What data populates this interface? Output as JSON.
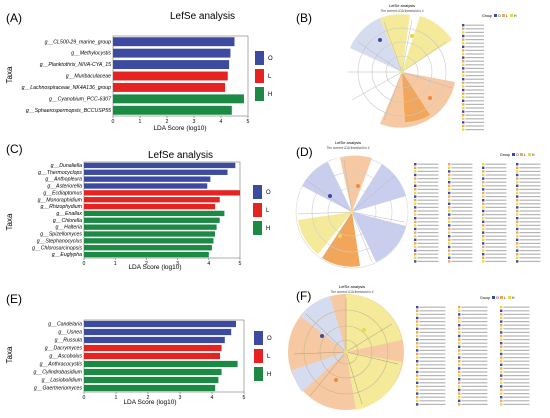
{
  "chart_data": [
    {
      "type": "bar",
      "panel_label": "(A)",
      "title": "LefSe analysis",
      "xlabel": "LDA Score (log10)",
      "ylabel": "Taxa",
      "xlim": [
        0,
        5
      ],
      "xticks": [
        0,
        1,
        2,
        3,
        4,
        5
      ],
      "legend": {
        "placement": "right",
        "entries": [
          "O",
          "L",
          "H"
        ]
      },
      "colors": {
        "O": "#3c4ba0",
        "L": "#e52421",
        "H": "#1c8a45"
      },
      "bars": [
        {
          "taxon": "g__CL500-29_marine_group",
          "group": "O",
          "value": 4.5
        },
        {
          "taxon": "g__Methylocystis",
          "group": "O",
          "value": 4.35
        },
        {
          "taxon": "g__Planktothrix_NIVA-CYA_15",
          "group": "O",
          "value": 4.3
        },
        {
          "taxon": "g__Muribaculaceae",
          "group": "L",
          "value": 4.25
        },
        {
          "taxon": "g__Lachnospiraceae_NK4A136_group",
          "group": "L",
          "value": 4.15
        },
        {
          "taxon": "g__Cyanobium_PCC-6307",
          "group": "H",
          "value": 4.85
        },
        {
          "taxon": "g__Sphaerospermopsis_BCCUSP55",
          "group": "H",
          "value": 4.4
        }
      ]
    },
    {
      "type": "bar",
      "panel_label": "(C)",
      "title": "LefSe analysis",
      "xlabel": "LDA Score (log10)",
      "ylabel": "Taxa",
      "xlim": [
        0,
        5
      ],
      "xticks": [
        0,
        1,
        2,
        3,
        4,
        5
      ],
      "legend": {
        "placement": "right",
        "entries": [
          "O",
          "L",
          "H"
        ]
      },
      "colors": {
        "O": "#3c4ba0",
        "L": "#e52421",
        "H": "#1c8a45"
      },
      "bars": [
        {
          "taxon": "g__Dunaliella",
          "group": "O",
          "value": 4.85
        },
        {
          "taxon": "g__Thermocyclops",
          "group": "O",
          "value": 4.6
        },
        {
          "taxon": "g__Anthopleura",
          "group": "O",
          "value": 4.05
        },
        {
          "taxon": "g__Asteriorella",
          "group": "O",
          "value": 3.95
        },
        {
          "taxon": "g__Ecdiaptomus",
          "group": "L",
          "value": 5.0
        },
        {
          "taxon": "g__Monoraphidium",
          "group": "L",
          "value": 4.35
        },
        {
          "taxon": "g__Rhizophydium",
          "group": "L",
          "value": 4.2
        },
        {
          "taxon": "g__Enallax",
          "group": "H",
          "value": 4.5
        },
        {
          "taxon": "g__Chlorella",
          "group": "H",
          "value": 4.35
        },
        {
          "taxon": "g__Halteria",
          "group": "H",
          "value": 4.25
        },
        {
          "taxon": "g__Spizellomyces",
          "group": "H",
          "value": 4.2
        },
        {
          "taxon": "g__Stephanocyclus",
          "group": "H",
          "value": 4.15
        },
        {
          "taxon": "g__Chlorosarcinopsis",
          "group": "H",
          "value": 4.1
        },
        {
          "taxon": "g__Euglypha",
          "group": "H",
          "value": 4.0
        }
      ]
    },
    {
      "type": "bar",
      "panel_label": "(E)",
      "title": "",
      "xlabel": "LDA Score (log10)",
      "ylabel": "Taxa",
      "xlim": [
        0,
        5
      ],
      "xticks": [
        0,
        1,
        2,
        3,
        4,
        5
      ],
      "legend": {
        "placement": "right",
        "entries": [
          "O",
          "L",
          "H"
        ]
      },
      "colors": {
        "O": "#3c4ba0",
        "L": "#e52421",
        "H": "#1c8a45"
      },
      "bars": [
        {
          "taxon": "g__Candelaria",
          "group": "O",
          "value": 4.75
        },
        {
          "taxon": "g__Usnea",
          "group": "O",
          "value": 4.6
        },
        {
          "taxon": "g__Russula",
          "group": "O",
          "value": 4.4
        },
        {
          "taxon": "g__Dacrymyces",
          "group": "L",
          "value": 4.3
        },
        {
          "taxon": "g__Ascobolus",
          "group": "L",
          "value": 4.25
        },
        {
          "taxon": "g__Anthracocystis",
          "group": "H",
          "value": 4.8
        },
        {
          "taxon": "g__Cylindrobasidium",
          "group": "H",
          "value": 4.3
        },
        {
          "taxon": "g__Lasiobolidium",
          "group": "H",
          "value": 4.2
        },
        {
          "taxon": "g__Gaertneriomyces",
          "group": "H",
          "value": 4.1
        }
      ]
    }
  ],
  "cladograms": [
    {
      "panel_label": "(B)",
      "title": "LefSe analysis",
      "subtitle": "The current LDA threshold is 4",
      "legend_title": "Group",
      "legend_entries": [
        "O",
        "L",
        "H"
      ]
    },
    {
      "panel_label": "(D)",
      "title": "LefSe analysis",
      "subtitle": "The current LDA threshold is 4",
      "legend_title": "Group",
      "legend_entries": [
        "O",
        "L",
        "H"
      ]
    },
    {
      "panel_label": "(F)",
      "title": "LefSe analysis",
      "subtitle": "The current LDA threshold is 4",
      "legend_title": "Group",
      "legend_entries": [
        "O",
        "L",
        "H"
      ]
    }
  ]
}
